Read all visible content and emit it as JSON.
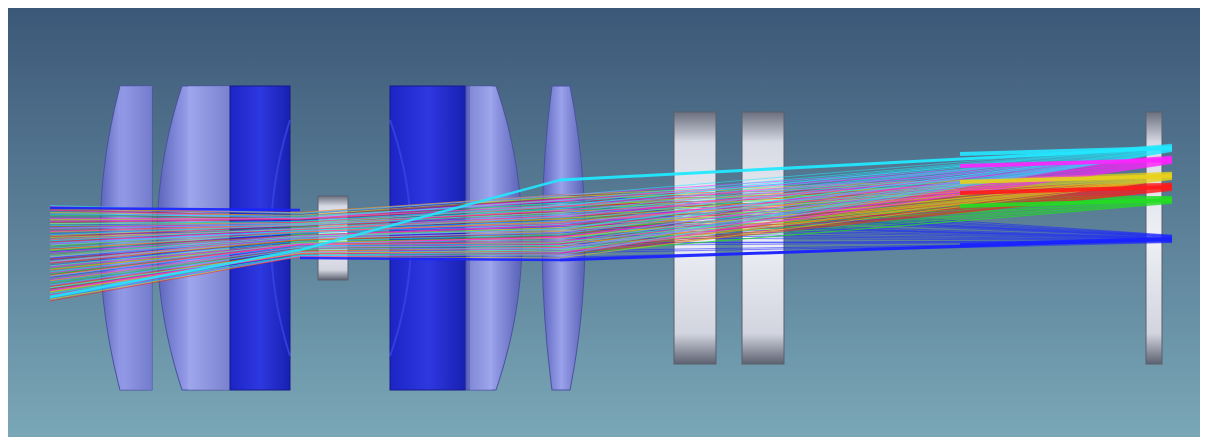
{
  "scene": {
    "background_top": "#3c5878",
    "background_bottom": "#7aa7b7",
    "lens_glass_color": "#7d86d8",
    "lens_dark_color": "#1b24c8",
    "plate_color": "#e4e7f0"
  },
  "elements": [
    {
      "name": "lens-element-1",
      "kind": "biconvex",
      "color": "lens_glass_color"
    },
    {
      "name": "lens-element-2",
      "kind": "meniscus",
      "color": "lens_glass_color"
    },
    {
      "name": "lens-element-3",
      "kind": "cemented-doublet",
      "color": "lens_dark_color"
    },
    {
      "name": "aperture-stop",
      "kind": "small-element",
      "color": "plate_color"
    },
    {
      "name": "lens-element-4",
      "kind": "cemented-doublet",
      "color": "lens_dark_color"
    },
    {
      "name": "lens-element-5",
      "kind": "meniscus",
      "color": "lens_glass_color"
    },
    {
      "name": "lens-element-6",
      "kind": "biconvex",
      "color": "lens_glass_color"
    },
    {
      "name": "filter-plate-1",
      "kind": "plate",
      "color": "plate_color"
    },
    {
      "name": "filter-plate-2",
      "kind": "plate",
      "color": "plate_color"
    },
    {
      "name": "image-sensor-plate",
      "kind": "plate",
      "color": "plate_color"
    }
  ],
  "ray_fields": [
    {
      "name": "blue",
      "color": "#1a22ff"
    },
    {
      "name": "green",
      "color": "#22dd22"
    },
    {
      "name": "red",
      "color": "#ff1a1a"
    },
    {
      "name": "yellow",
      "color": "#e8d21a"
    },
    {
      "name": "magenta",
      "color": "#ff22ff"
    },
    {
      "name": "cyan",
      "color": "#22e8ff"
    }
  ]
}
